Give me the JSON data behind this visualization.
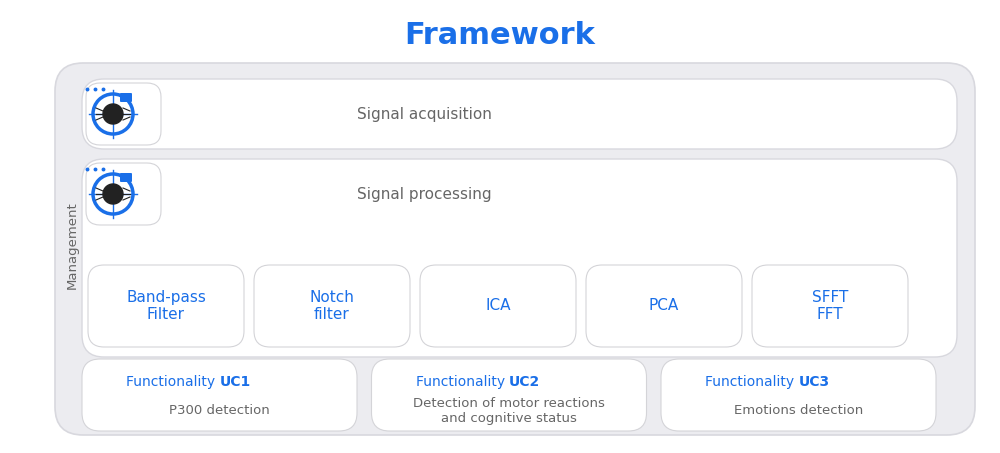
{
  "title": "Framework",
  "title_color": "#1a6fe8",
  "title_fontsize": 22,
  "title_bold": true,
  "bg_color": "#ffffff",
  "outer_box_color": "#e8e8ec",
  "inner_box_color": "#ffffff",
  "blue_color": "#1a6fe8",
  "gray_text_color": "#666666",
  "management_label": "Management",
  "signal_acq_label": "Signal acquisition",
  "signal_proc_label": "Signal processing",
  "filter_modules": [
    {
      "label": "Band-pass\nFilter",
      "highlighted": false
    },
    {
      "label": "Notch\nfilter",
      "highlighted": false
    },
    {
      "label": "ICA",
      "highlighted": false
    },
    {
      "label": "PCA",
      "highlighted": false
    },
    {
      "label": "SFFT\nFFT",
      "highlighted": false
    }
  ],
  "functionality_modules": [
    {
      "title": "Functionality UC1",
      "body": "P300 detection",
      "highlighted": false
    },
    {
      "title": "Functionality UC2",
      "body": "Detection of motor reactions\nand cognitive status",
      "highlighted": false
    },
    {
      "title": "Functionality UC3",
      "body": "Emotions detection",
      "highlighted": false
    }
  ]
}
